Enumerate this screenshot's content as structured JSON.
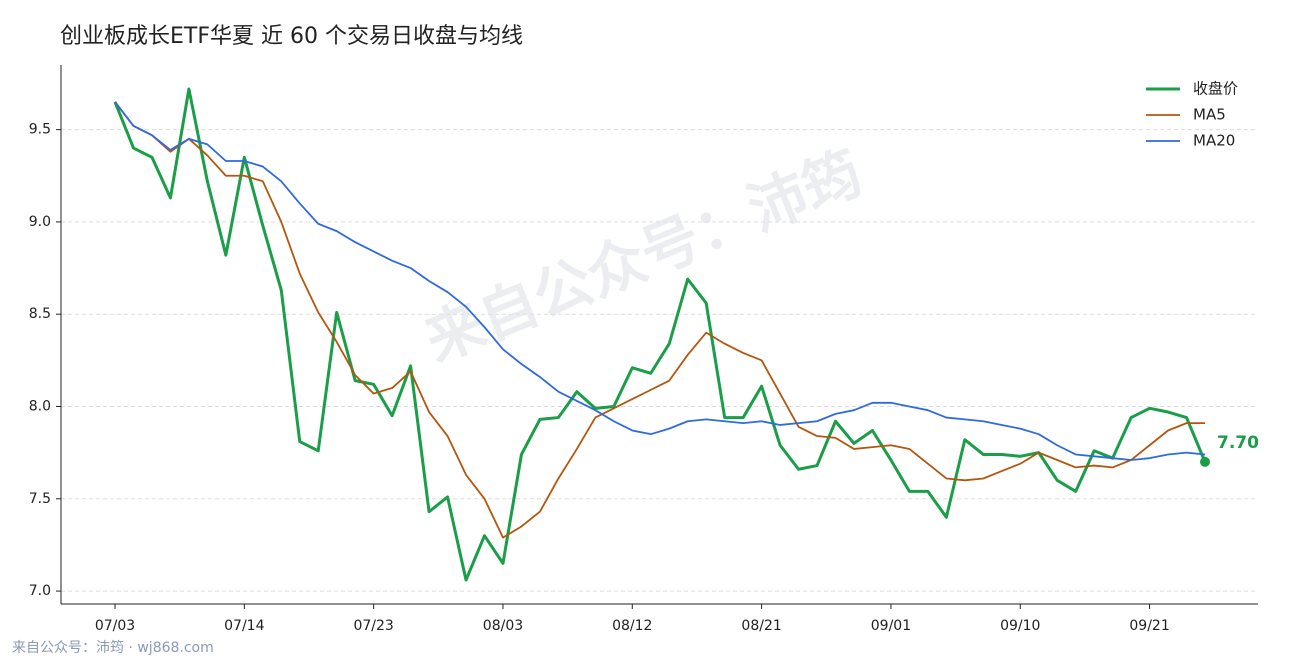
{
  "chart_data": {
    "type": "line",
    "title": "创业板成长ETF华夏 近 60 个交易日收盘与均线",
    "watermark": "来自公众号：沛筠",
    "footer": "来自公众号：沛筠 · wj868.com",
    "categories": [
      "07/03",
      null,
      null,
      null,
      null,
      null,
      null,
      "07/14",
      null,
      null,
      null,
      null,
      null,
      null,
      "07/23",
      null,
      null,
      null,
      null,
      null,
      null,
      "08/03",
      null,
      null,
      null,
      null,
      null,
      null,
      "08/12",
      null,
      null,
      null,
      null,
      null,
      null,
      "08/21",
      null,
      null,
      null,
      null,
      null,
      null,
      "09/01",
      null,
      null,
      null,
      null,
      null,
      null,
      "09/10",
      null,
      null,
      null,
      null,
      null,
      null,
      "09/21",
      null,
      null,
      null
    ],
    "series": [
      {
        "name": "收盘价",
        "color": "#1a9e48",
        "values": [
          9.65,
          9.4,
          9.35,
          9.13,
          9.72,
          9.22,
          8.82,
          9.35,
          8.98,
          8.63,
          7.81,
          7.76,
          8.51,
          8.14,
          8.12,
          7.95,
          8.22,
          7.43,
          7.51,
          7.06,
          7.3,
          7.15,
          7.74,
          7.93,
          7.94,
          8.08,
          7.99,
          8.0,
          8.21,
          8.18,
          8.34,
          8.69,
          8.56,
          7.94,
          7.94,
          8.11,
          7.79,
          7.66,
          7.68,
          7.92,
          7.8,
          7.87,
          7.71,
          7.54,
          7.54,
          7.4,
          7.82,
          7.74,
          7.74,
          7.73,
          7.75,
          7.6,
          7.54,
          7.76,
          7.72,
          7.94,
          7.99,
          7.97,
          7.94,
          7.7
        ],
        "value_labels": [
          null,
          null,
          null,
          null,
          null,
          null,
          null,
          null,
          null,
          null,
          null,
          null,
          null,
          null,
          null,
          null,
          null,
          null,
          null,
          null,
          null,
          null,
          null,
          null,
          null,
          null,
          null,
          null,
          null,
          null,
          null,
          null,
          null,
          null,
          null,
          null,
          null,
          null,
          null,
          null,
          null,
          null,
          null,
          null,
          null,
          null,
          null,
          null,
          null,
          null,
          null,
          null,
          null,
          null,
          null,
          null,
          null,
          null,
          null,
          "7.70"
        ]
      },
      {
        "name": "MA5",
        "color": "#b5560e",
        "values": [
          9.65,
          9.52,
          9.47,
          9.38,
          9.45,
          9.36,
          9.25,
          9.25,
          9.22,
          9.0,
          8.72,
          8.51,
          8.35,
          8.17,
          8.07,
          8.1,
          8.19,
          7.97,
          7.84,
          7.63,
          7.5,
          7.29,
          7.35,
          7.43,
          7.61,
          7.77,
          7.94,
          7.99,
          8.04,
          8.09,
          8.14,
          8.28,
          8.4,
          8.34,
          8.29,
          8.25,
          8.07,
          7.89,
          7.84,
          7.83,
          7.77,
          7.78,
          7.79,
          7.77,
          7.69,
          7.61,
          7.6,
          7.61,
          7.65,
          7.69,
          7.75,
          7.71,
          7.67,
          7.68,
          7.67,
          7.71,
          7.79,
          7.87,
          7.91,
          7.91
        ]
      },
      {
        "name": "MA20",
        "color": "#2e6ae0",
        "values": [
          9.65,
          9.52,
          9.47,
          9.39,
          9.45,
          9.42,
          9.33,
          9.33,
          9.3,
          9.22,
          9.1,
          8.99,
          8.95,
          8.89,
          8.84,
          8.79,
          8.75,
          8.68,
          8.62,
          8.54,
          8.43,
          8.31,
          8.23,
          8.16,
          8.08,
          8.03,
          7.98,
          7.92,
          7.87,
          7.85,
          7.88,
          7.92,
          7.93,
          7.92,
          7.91,
          7.92,
          7.9,
          7.91,
          7.92,
          7.96,
          7.98,
          8.02,
          8.02,
          8.0,
          7.98,
          7.94,
          7.93,
          7.92,
          7.9,
          7.88,
          7.85,
          7.79,
          7.74,
          7.73,
          7.72,
          7.71,
          7.72,
          7.74,
          7.75,
          7.74
        ]
      }
    ],
    "ylim": [
      6.93,
      9.85
    ],
    "yticks": [
      {
        "value": 7,
        "label": "7.0"
      },
      7.5,
      {
        "value": 8,
        "label": "8.0"
      },
      8.5,
      {
        "value": 9,
        "label": "9.0"
      },
      9.5
    ],
    "grid": true,
    "legend": "upper right"
  }
}
